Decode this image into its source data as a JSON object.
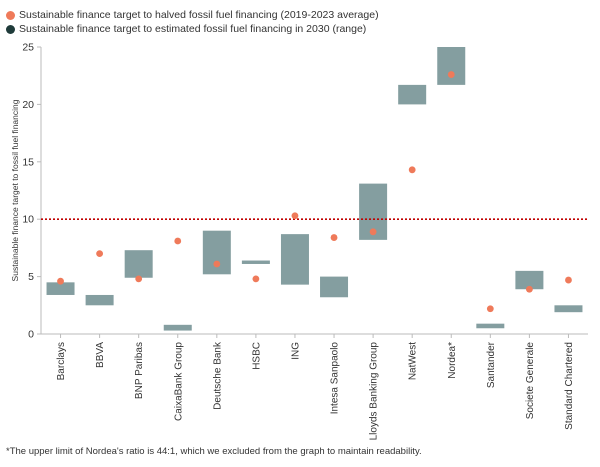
{
  "legend": [
    {
      "label": "Sustainable finance target to halved fossil fuel financing (2019-2023 average)",
      "color": "#ef7a5a"
    },
    {
      "label": "Sustainable finance target to estimated fossil fuel financing in 2030 (range)",
      "color": "#1f3b3a"
    }
  ],
  "footnote": "*The upper limit of Nordea's ratio is 44:1, which we excluded from the graph to maintain readability.",
  "colors": {
    "range_bar": "#849ea0",
    "dot": "#ef7a5a",
    "threshold": "#c00000",
    "axis": "#bbbbbb"
  },
  "chart_data": {
    "type": "bar",
    "ylabel": "Sustainable finance target to fossil fuel financing",
    "ylim": [
      0,
      25
    ],
    "yticks": [
      0,
      5,
      10,
      15,
      20,
      25
    ],
    "threshold": 10,
    "categories": [
      "Barclays",
      "BBVA",
      "BNP Paribas",
      "CaixaBank Group",
      "Deutsche Bank",
      "HSBC",
      "ING",
      "Intesa Sanpaolo",
      "Lloyds Banking Group",
      "NatWest",
      "Nordea*",
      "Santander",
      "Societe Generale",
      "Standard Chartered"
    ],
    "series": [
      {
        "name": "Sustainable finance target to estimated fossil fuel financing in 2030 (range)",
        "ranges": [
          [
            3.4,
            4.5
          ],
          [
            2.5,
            3.4
          ],
          [
            4.9,
            7.3
          ],
          [
            0.3,
            0.8
          ],
          [
            5.2,
            9.0
          ],
          [
            6.1,
            6.4
          ],
          [
            4.3,
            8.7
          ],
          [
            3.2,
            5.0
          ],
          [
            8.2,
            13.1
          ],
          [
            20.0,
            21.7
          ],
          [
            21.7,
            25.0
          ],
          [
            0.5,
            0.9
          ],
          [
            3.9,
            5.5
          ],
          [
            1.9,
            2.5
          ]
        ]
      },
      {
        "name": "Sustainable finance target to halved fossil fuel financing (2019-2023 average)",
        "values": [
          4.6,
          7.0,
          4.8,
          8.1,
          6.1,
          4.8,
          10.3,
          8.4,
          8.9,
          14.3,
          22.6,
          2.2,
          3.9,
          4.7
        ]
      }
    ]
  }
}
